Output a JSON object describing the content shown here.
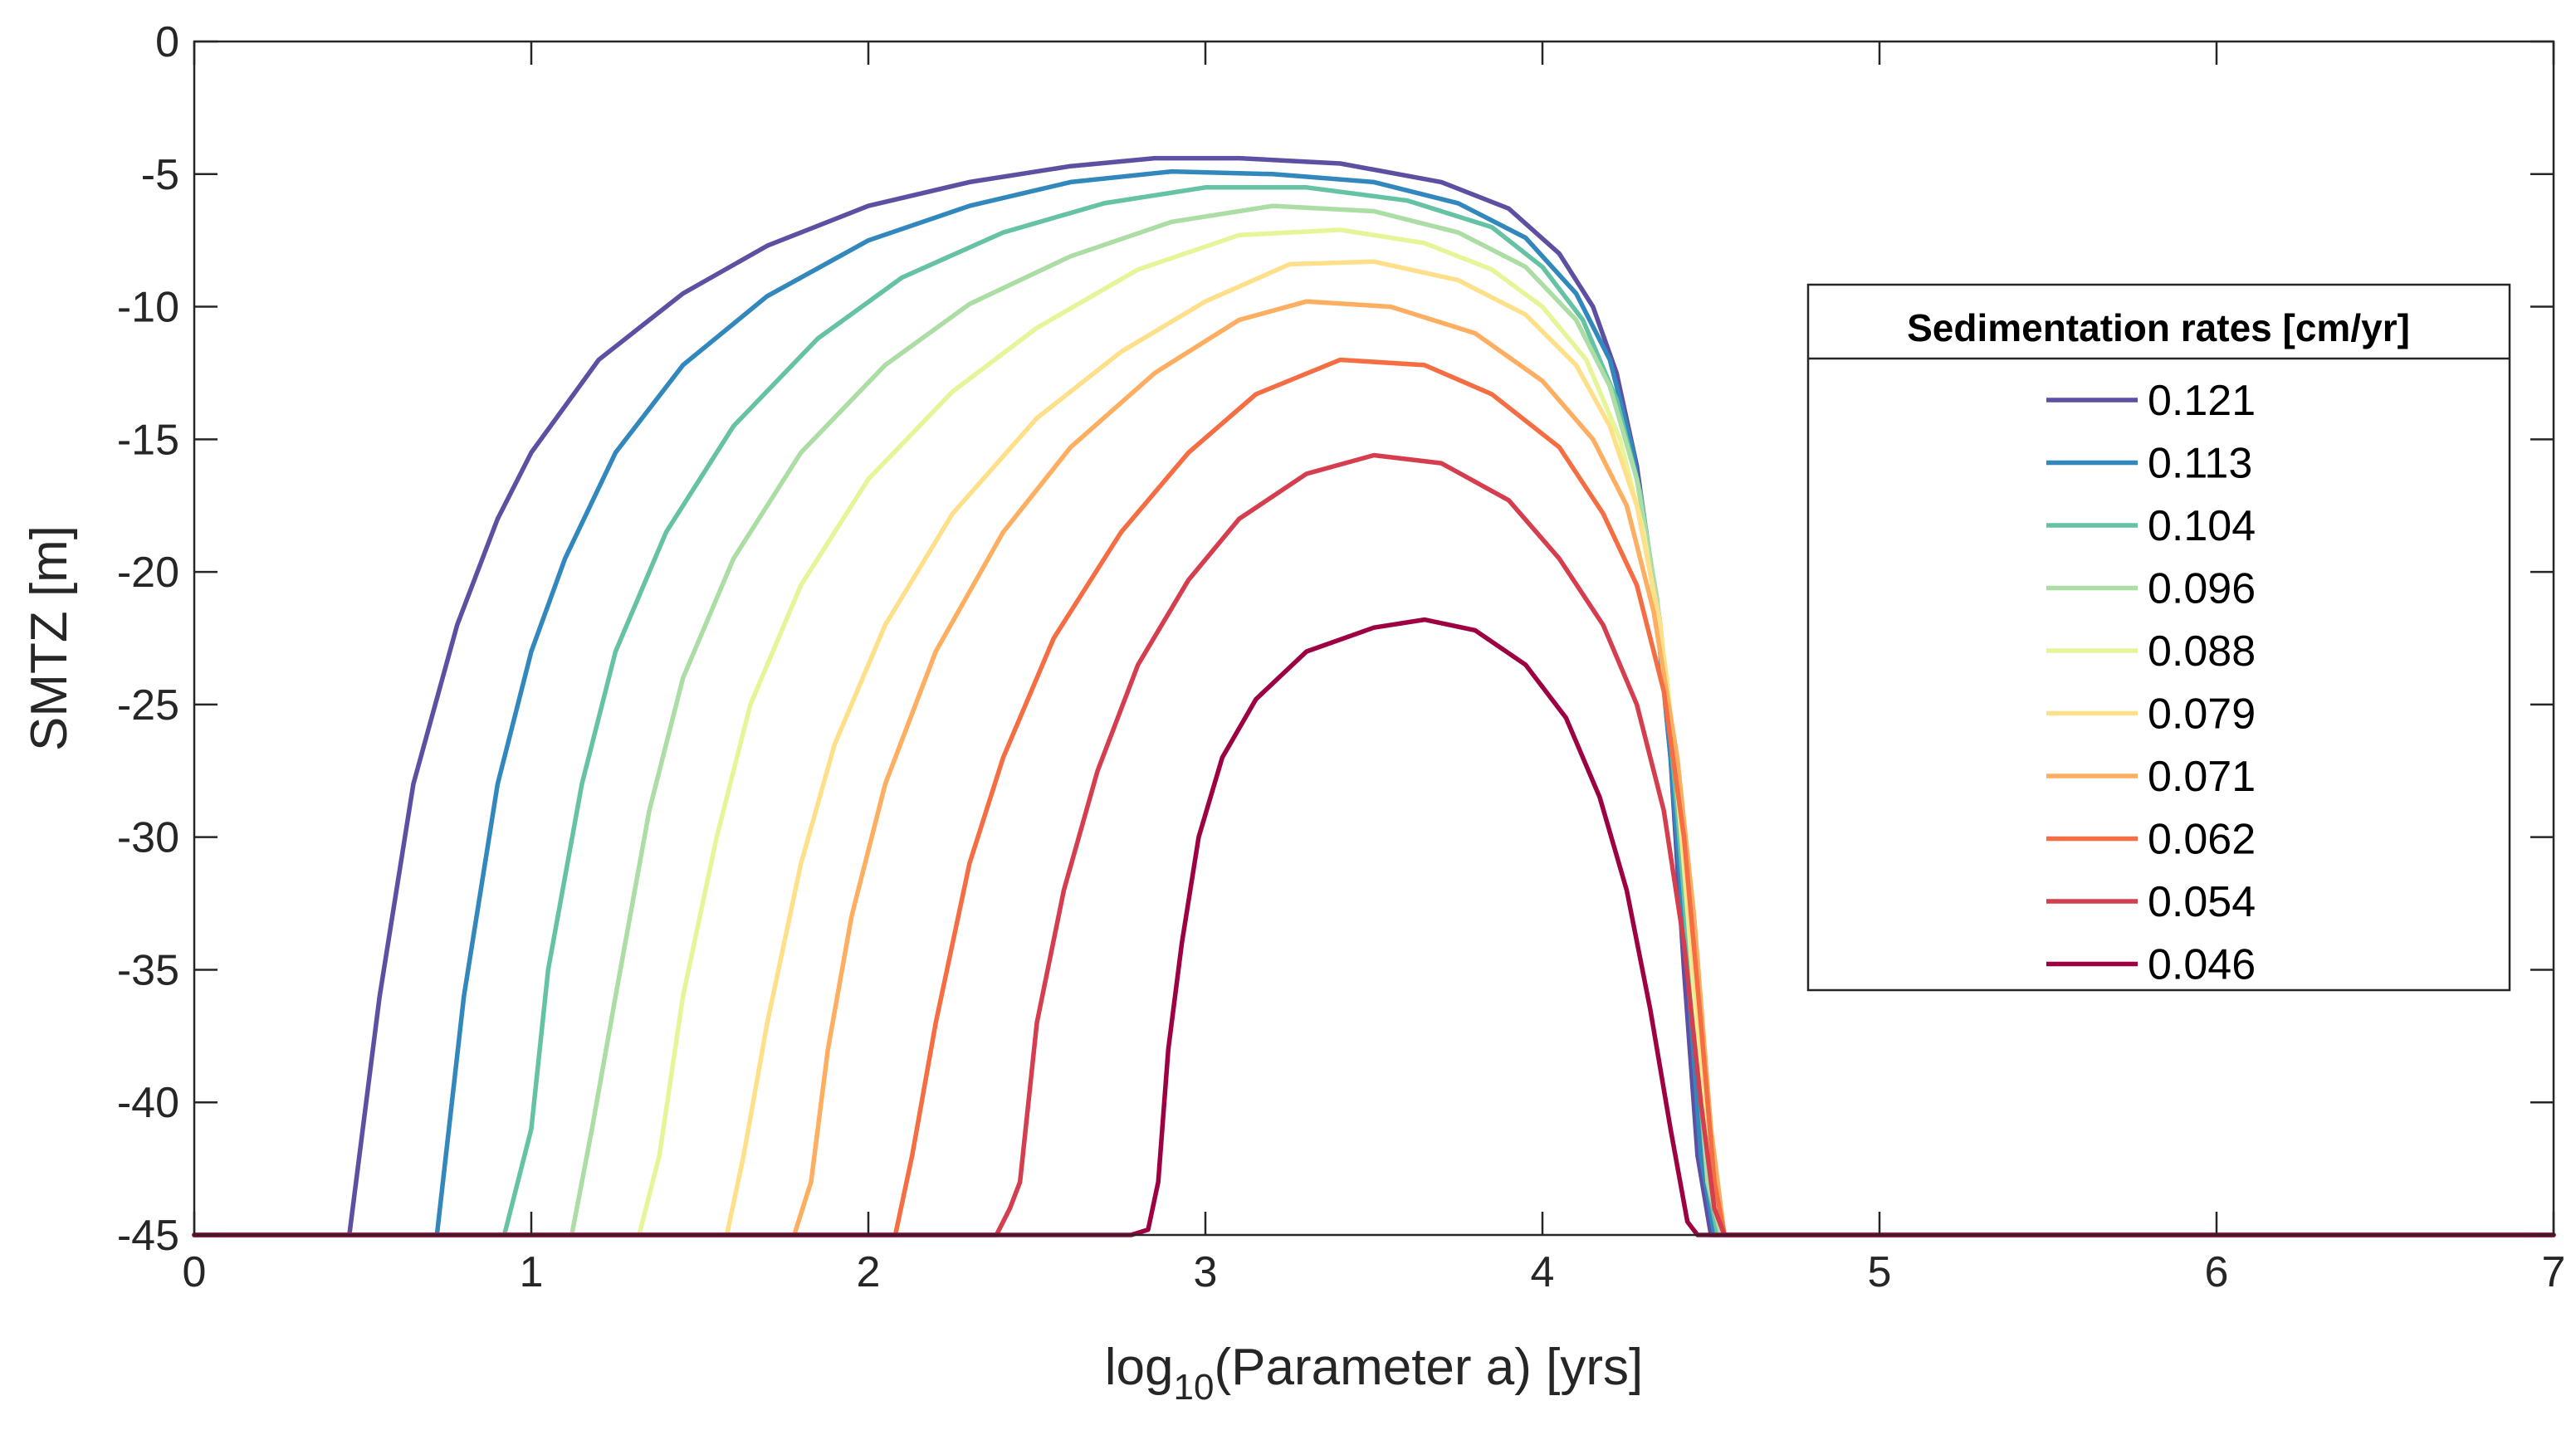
{
  "chart_data": {
    "type": "line",
    "title": "",
    "xlabel": {
      "prefix": "log",
      "subscript": "10",
      "suffix": "(Parameter a) [yrs]"
    },
    "ylabel": "SMTZ [m]",
    "xlim": [
      0,
      7
    ],
    "ylim": [
      -45,
      0
    ],
    "xticks": [
      0,
      1,
      2,
      3,
      4,
      5,
      6,
      7
    ],
    "xtick_labels": [
      "0",
      "1",
      "2",
      "3",
      "4",
      "5",
      "6",
      "7"
    ],
    "yticks": [
      0,
      -5,
      -10,
      -15,
      -20,
      -25,
      -30,
      -35,
      -40,
      -45
    ],
    "ytick_labels": [
      "0",
      "-5",
      "-10",
      "-15",
      "-20",
      "-25",
      "-30",
      "-35",
      "-40",
      "-45"
    ],
    "grid": false,
    "legend": {
      "title": "Sedimentation rates [cm/yr]",
      "placement": "right"
    },
    "series": [
      {
        "name": "0.121",
        "color": "#5e4fa2",
        "points": [
          [
            0,
            -45
          ],
          [
            0.46,
            -45
          ],
          [
            0.55,
            -36
          ],
          [
            0.65,
            -28
          ],
          [
            0.78,
            -22
          ],
          [
            0.9,
            -18
          ],
          [
            1.0,
            -15.5
          ],
          [
            1.2,
            -12
          ],
          [
            1.45,
            -9.5
          ],
          [
            1.7,
            -7.7
          ],
          [
            2.0,
            -6.2
          ],
          [
            2.3,
            -5.3
          ],
          [
            2.6,
            -4.7
          ],
          [
            2.85,
            -4.4
          ],
          [
            3.1,
            -4.4
          ],
          [
            3.4,
            -4.6
          ],
          [
            3.7,
            -5.3
          ],
          [
            3.9,
            -6.3
          ],
          [
            4.05,
            -8.0
          ],
          [
            4.15,
            -10.0
          ],
          [
            4.22,
            -12.5
          ],
          [
            4.28,
            -16.0
          ],
          [
            4.33,
            -20.5
          ],
          [
            4.38,
            -27
          ],
          [
            4.42,
            -35
          ],
          [
            4.46,
            -42
          ],
          [
            4.5,
            -45
          ],
          [
            7,
            -45
          ]
        ]
      },
      {
        "name": "0.113",
        "color": "#3288bd",
        "points": [
          [
            0,
            -45
          ],
          [
            0.72,
            -45
          ],
          [
            0.8,
            -36
          ],
          [
            0.9,
            -28
          ],
          [
            1.0,
            -23
          ],
          [
            1.1,
            -19.5
          ],
          [
            1.25,
            -15.5
          ],
          [
            1.45,
            -12.2
          ],
          [
            1.7,
            -9.6
          ],
          [
            2.0,
            -7.5
          ],
          [
            2.3,
            -6.2
          ],
          [
            2.6,
            -5.3
          ],
          [
            2.9,
            -4.9
          ],
          [
            3.2,
            -5.0
          ],
          [
            3.5,
            -5.3
          ],
          [
            3.75,
            -6.1
          ],
          [
            3.95,
            -7.4
          ],
          [
            4.1,
            -9.5
          ],
          [
            4.2,
            -12.0
          ],
          [
            4.27,
            -15.5
          ],
          [
            4.33,
            -20.5
          ],
          [
            4.38,
            -27
          ],
          [
            4.43,
            -35
          ],
          [
            4.47,
            -42
          ],
          [
            4.51,
            -45
          ],
          [
            7,
            -45
          ]
        ]
      },
      {
        "name": "0.104",
        "color": "#66c2a5",
        "points": [
          [
            0,
            -45
          ],
          [
            0.92,
            -45
          ],
          [
            1.0,
            -41
          ],
          [
            1.05,
            -35
          ],
          [
            1.15,
            -28
          ],
          [
            1.25,
            -23
          ],
          [
            1.4,
            -18.5
          ],
          [
            1.6,
            -14.5
          ],
          [
            1.85,
            -11.2
          ],
          [
            2.1,
            -8.9
          ],
          [
            2.4,
            -7.2
          ],
          [
            2.7,
            -6.1
          ],
          [
            3.0,
            -5.5
          ],
          [
            3.3,
            -5.5
          ],
          [
            3.6,
            -6.0
          ],
          [
            3.85,
            -7.0
          ],
          [
            4.0,
            -8.5
          ],
          [
            4.12,
            -10.5
          ],
          [
            4.22,
            -13.5
          ],
          [
            4.29,
            -17.0
          ],
          [
            4.35,
            -22
          ],
          [
            4.4,
            -29
          ],
          [
            4.45,
            -37
          ],
          [
            4.49,
            -43
          ],
          [
            4.52,
            -45
          ],
          [
            7,
            -45
          ]
        ]
      },
      {
        "name": "0.096",
        "color": "#abdda4",
        "points": [
          [
            0,
            -45
          ],
          [
            1.12,
            -45
          ],
          [
            1.18,
            -41
          ],
          [
            1.25,
            -36
          ],
          [
            1.35,
            -29
          ],
          [
            1.45,
            -24
          ],
          [
            1.6,
            -19.5
          ],
          [
            1.8,
            -15.5
          ],
          [
            2.05,
            -12.2
          ],
          [
            2.3,
            -9.9
          ],
          [
            2.6,
            -8.1
          ],
          [
            2.9,
            -6.8
          ],
          [
            3.2,
            -6.2
          ],
          [
            3.5,
            -6.4
          ],
          [
            3.75,
            -7.2
          ],
          [
            3.95,
            -8.5
          ],
          [
            4.1,
            -10.5
          ],
          [
            4.2,
            -13.0
          ],
          [
            4.28,
            -16.5
          ],
          [
            4.34,
            -21
          ],
          [
            4.4,
            -28
          ],
          [
            4.45,
            -36
          ],
          [
            4.49,
            -43
          ],
          [
            4.53,
            -45
          ],
          [
            7,
            -45
          ]
        ]
      },
      {
        "name": "0.088",
        "color": "#e6f598",
        "points": [
          [
            0,
            -45
          ],
          [
            1.32,
            -45
          ],
          [
            1.38,
            -42
          ],
          [
            1.45,
            -36
          ],
          [
            1.55,
            -30
          ],
          [
            1.65,
            -25
          ],
          [
            1.8,
            -20.5
          ],
          [
            2.0,
            -16.5
          ],
          [
            2.25,
            -13.2
          ],
          [
            2.5,
            -10.8
          ],
          [
            2.8,
            -8.6
          ],
          [
            3.1,
            -7.3
          ],
          [
            3.4,
            -7.1
          ],
          [
            3.65,
            -7.6
          ],
          [
            3.85,
            -8.6
          ],
          [
            4.0,
            -10.0
          ],
          [
            4.13,
            -12.0
          ],
          [
            4.23,
            -15.0
          ],
          [
            4.3,
            -18.5
          ],
          [
            4.37,
            -24
          ],
          [
            4.42,
            -31
          ],
          [
            4.47,
            -39
          ],
          [
            4.51,
            -44
          ],
          [
            4.54,
            -45
          ],
          [
            7,
            -45
          ]
        ]
      },
      {
        "name": "0.079",
        "color": "#fee08b",
        "points": [
          [
            0,
            -45
          ],
          [
            1.58,
            -45
          ],
          [
            1.63,
            -42
          ],
          [
            1.7,
            -37
          ],
          [
            1.8,
            -31
          ],
          [
            1.9,
            -26.5
          ],
          [
            2.05,
            -22
          ],
          [
            2.25,
            -17.8
          ],
          [
            2.5,
            -14.2
          ],
          [
            2.75,
            -11.7
          ],
          [
            3.0,
            -9.8
          ],
          [
            3.25,
            -8.4
          ],
          [
            3.5,
            -8.3
          ],
          [
            3.75,
            -9.0
          ],
          [
            3.95,
            -10.3
          ],
          [
            4.1,
            -12.2
          ],
          [
            4.2,
            -14.5
          ],
          [
            4.28,
            -17.5
          ],
          [
            4.35,
            -22
          ],
          [
            4.4,
            -28
          ],
          [
            4.45,
            -35
          ],
          [
            4.5,
            -42
          ],
          [
            4.54,
            -45
          ],
          [
            7,
            -45
          ]
        ]
      },
      {
        "name": "0.071",
        "color": "#fdae61",
        "points": [
          [
            0,
            -45
          ],
          [
            1.78,
            -45
          ],
          [
            1.83,
            -43
          ],
          [
            1.88,
            -38
          ],
          [
            1.95,
            -33
          ],
          [
            2.05,
            -28
          ],
          [
            2.2,
            -23
          ],
          [
            2.4,
            -18.5
          ],
          [
            2.6,
            -15.3
          ],
          [
            2.85,
            -12.5
          ],
          [
            3.1,
            -10.5
          ],
          [
            3.3,
            -9.8
          ],
          [
            3.55,
            -10.0
          ],
          [
            3.8,
            -11.0
          ],
          [
            4.0,
            -12.8
          ],
          [
            4.15,
            -15.0
          ],
          [
            4.25,
            -17.5
          ],
          [
            4.33,
            -21.5
          ],
          [
            4.4,
            -27
          ],
          [
            4.45,
            -33
          ],
          [
            4.5,
            -41
          ],
          [
            4.54,
            -45
          ],
          [
            7,
            -45
          ]
        ]
      },
      {
        "name": "0.062",
        "color": "#f46d43",
        "points": [
          [
            0,
            -45
          ],
          [
            2.08,
            -45
          ],
          [
            2.13,
            -42
          ],
          [
            2.2,
            -37
          ],
          [
            2.3,
            -31
          ],
          [
            2.4,
            -27
          ],
          [
            2.55,
            -22.5
          ],
          [
            2.75,
            -18.5
          ],
          [
            2.95,
            -15.5
          ],
          [
            3.15,
            -13.3
          ],
          [
            3.4,
            -12.0
          ],
          [
            3.65,
            -12.2
          ],
          [
            3.85,
            -13.3
          ],
          [
            4.05,
            -15.3
          ],
          [
            4.18,
            -17.8
          ],
          [
            4.28,
            -20.5
          ],
          [
            4.36,
            -24.5
          ],
          [
            4.42,
            -30
          ],
          [
            4.47,
            -37
          ],
          [
            4.51,
            -43
          ],
          [
            4.54,
            -45
          ],
          [
            7,
            -45
          ]
        ]
      },
      {
        "name": "0.054",
        "color": "#d53e4f",
        "points": [
          [
            0,
            -45
          ],
          [
            2.38,
            -45
          ],
          [
            2.42,
            -44
          ],
          [
            2.45,
            -43
          ],
          [
            2.5,
            -37
          ],
          [
            2.58,
            -32
          ],
          [
            2.68,
            -27.5
          ],
          [
            2.8,
            -23.5
          ],
          [
            2.95,
            -20.3
          ],
          [
            3.1,
            -18.0
          ],
          [
            3.3,
            -16.3
          ],
          [
            3.5,
            -15.6
          ],
          [
            3.7,
            -15.9
          ],
          [
            3.9,
            -17.3
          ],
          [
            4.05,
            -19.5
          ],
          [
            4.18,
            -22.0
          ],
          [
            4.28,
            -25.0
          ],
          [
            4.36,
            -29
          ],
          [
            4.42,
            -34
          ],
          [
            4.47,
            -40
          ],
          [
            4.51,
            -44
          ],
          [
            4.54,
            -45
          ],
          [
            7,
            -45
          ]
        ]
      },
      {
        "name": "0.046",
        "color": "#9e0142",
        "points": [
          [
            0,
            -45
          ],
          [
            2.78,
            -45
          ],
          [
            2.83,
            -44.8
          ],
          [
            2.86,
            -43
          ],
          [
            2.89,
            -38
          ],
          [
            2.93,
            -34
          ],
          [
            2.98,
            -30
          ],
          [
            3.05,
            -27
          ],
          [
            3.15,
            -24.8
          ],
          [
            3.3,
            -23.0
          ],
          [
            3.5,
            -22.1
          ],
          [
            3.65,
            -21.8
          ],
          [
            3.8,
            -22.2
          ],
          [
            3.95,
            -23.5
          ],
          [
            4.07,
            -25.5
          ],
          [
            4.17,
            -28.5
          ],
          [
            4.25,
            -32
          ],
          [
            4.32,
            -36.5
          ],
          [
            4.38,
            -41
          ],
          [
            4.43,
            -44.5
          ],
          [
            4.46,
            -45
          ],
          [
            7,
            -45
          ]
        ]
      }
    ]
  }
}
